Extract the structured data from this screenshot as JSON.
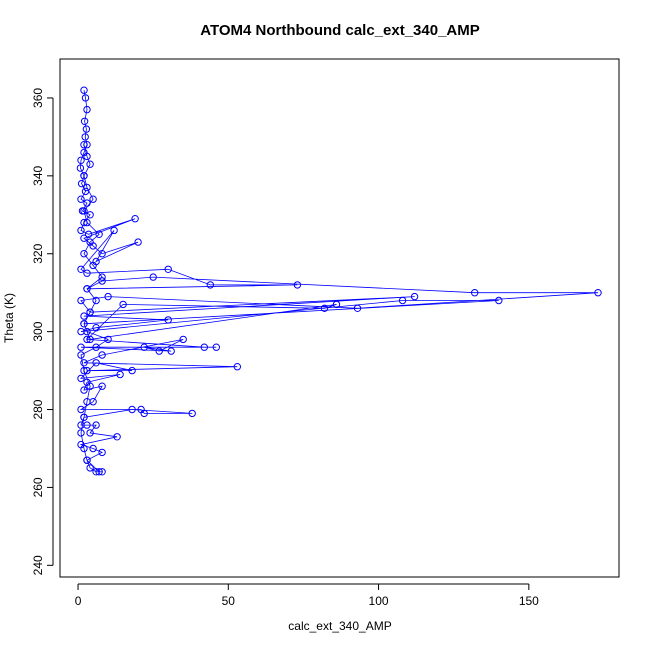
{
  "chart_data": {
    "type": "scatter",
    "title": "ATOM4 Northbound calc_ext_340_AMP",
    "xlabel": "calc_ext_340_AMP",
    "ylabel": "Theta (K)",
    "xlim": [
      -6,
      180
    ],
    "ylim": [
      237,
      370
    ],
    "x_ticks": [
      0,
      50,
      100,
      150
    ],
    "y_ticks": [
      240,
      260,
      280,
      300,
      320,
      340,
      360
    ],
    "point_color": "#0000ff",
    "line_color": "#0000ff",
    "marker": "open-circle",
    "lines": true,
    "series": [
      {
        "points": [
          [
            2,
            362
          ],
          [
            2.5,
            360
          ],
          [
            3,
            357
          ],
          [
            2.2,
            354
          ],
          [
            2.8,
            352
          ],
          [
            2.4,
            350
          ],
          [
            3,
            348
          ],
          [
            2,
            346
          ],
          [
            1,
            344
          ],
          [
            0.8,
            342
          ],
          [
            2,
            340
          ],
          [
            1.2,
            338
          ],
          [
            2.5,
            336
          ],
          [
            1,
            334
          ],
          [
            3,
            333
          ],
          [
            1.5,
            331
          ],
          [
            4,
            330
          ],
          [
            2,
            328
          ],
          [
            1,
            326
          ],
          [
            3.5,
            325
          ],
          [
            19,
            329
          ],
          [
            2,
            324
          ],
          [
            5,
            322
          ],
          [
            8,
            320
          ],
          [
            20,
            323
          ],
          [
            6,
            318
          ],
          [
            12,
            326
          ],
          [
            1,
            316
          ],
          [
            3,
            315
          ],
          [
            30,
            316
          ],
          [
            44,
            312
          ],
          [
            73,
            312
          ],
          [
            3,
            311
          ],
          [
            8,
            313
          ],
          [
            25,
            314
          ],
          [
            132,
            310
          ],
          [
            173,
            310
          ],
          [
            93,
            306
          ],
          [
            10,
            309
          ],
          [
            1,
            308
          ],
          [
            4,
            305
          ],
          [
            112,
            309
          ],
          [
            2,
            304
          ],
          [
            30,
            303
          ],
          [
            6,
            301
          ],
          [
            1,
            300
          ],
          [
            108,
            308
          ],
          [
            140,
            308
          ],
          [
            2,
            302
          ],
          [
            4,
            298
          ],
          [
            86,
            307
          ],
          [
            82,
            306
          ],
          [
            15,
            307
          ],
          [
            3,
            298
          ],
          [
            42,
            296
          ],
          [
            46,
            296
          ],
          [
            1,
            296
          ],
          [
            31,
            295
          ],
          [
            22,
            296
          ],
          [
            27,
            295
          ],
          [
            35,
            298
          ],
          [
            8,
            294
          ],
          [
            2,
            292
          ],
          [
            53,
            291
          ],
          [
            3,
            290
          ],
          [
            18,
            290
          ],
          [
            6,
            292
          ],
          [
            1,
            288
          ],
          [
            14,
            289
          ],
          [
            3,
            287
          ],
          [
            2,
            285
          ],
          [
            8,
            286
          ],
          [
            5,
            282
          ],
          [
            1,
            280
          ],
          [
            21,
            280
          ],
          [
            22,
            279
          ],
          [
            38,
            279
          ],
          [
            18,
            280
          ],
          [
            2,
            278
          ],
          [
            1,
            276
          ],
          [
            3,
            276
          ],
          [
            6,
            276
          ],
          [
            4,
            274
          ],
          [
            13,
            273
          ],
          [
            1,
            271
          ],
          [
            5,
            270
          ],
          [
            8,
            269
          ],
          [
            3,
            267
          ],
          [
            7,
            264
          ],
          [
            8,
            264
          ],
          [
            6,
            264
          ],
          [
            4,
            265
          ],
          [
            3,
            267
          ],
          [
            2,
            270
          ],
          [
            1,
            274
          ],
          [
            2,
            278
          ],
          [
            3,
            282
          ],
          [
            4,
            286
          ],
          [
            2,
            290
          ],
          [
            1,
            294
          ],
          [
            6,
            296
          ],
          [
            10,
            298
          ],
          [
            3,
            300
          ],
          [
            2,
            302
          ],
          [
            4,
            305
          ],
          [
            6,
            308
          ],
          [
            3,
            311
          ],
          [
            8,
            314
          ],
          [
            5,
            317
          ],
          [
            2,
            320
          ],
          [
            4,
            323
          ],
          [
            7,
            325
          ],
          [
            3,
            328
          ],
          [
            2,
            331
          ],
          [
            5,
            334
          ],
          [
            3,
            337
          ],
          [
            2,
            340
          ],
          [
            4,
            343
          ],
          [
            3,
            345
          ],
          [
            2,
            348
          ]
        ]
      }
    ]
  }
}
